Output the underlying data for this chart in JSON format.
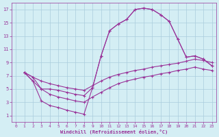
{
  "xlabel": "Windchill (Refroidissement éolien,°C)",
  "bg_color": "#d4eef4",
  "line_color": "#993399",
  "grid_color": "#aaccdd",
  "xlim": [
    -0.5,
    23.5
  ],
  "ylim": [
    0,
    18
  ],
  "xticks": [
    0,
    1,
    2,
    3,
    4,
    5,
    6,
    7,
    8,
    9,
    10,
    11,
    12,
    13,
    14,
    15,
    16,
    17,
    18,
    19,
    20,
    21,
    22,
    23
  ],
  "yticks": [
    1,
    3,
    5,
    7,
    9,
    11,
    13,
    15,
    17
  ],
  "curve1_x": [
    1,
    2,
    3,
    4,
    5,
    6,
    7,
    8,
    9,
    10,
    11,
    12,
    13,
    14,
    15,
    16,
    17,
    18,
    19,
    20,
    21,
    22,
    23
  ],
  "curve1_y": [
    7.5,
    6.2,
    5.0,
    5.0,
    4.8,
    4.5,
    4.2,
    4.0,
    5.2,
    10.0,
    13.8,
    14.8,
    15.5,
    17.0,
    17.2,
    17.0,
    16.2,
    15.2,
    12.5,
    9.8,
    10.0,
    9.5,
    8.5
  ],
  "curve2_x": [
    1,
    2,
    3,
    4,
    5,
    6,
    7,
    8,
    9,
    10,
    11,
    12,
    13,
    14,
    15,
    16,
    17,
    18,
    19,
    20,
    21,
    22,
    23
  ],
  "curve2_y": [
    7.5,
    6.2,
    3.2,
    2.5,
    2.2,
    1.8,
    1.5,
    1.2,
    5.2,
    10.0,
    13.8,
    14.8,
    15.5,
    17.0,
    17.2,
    17.0,
    16.2,
    15.2,
    12.5,
    9.8,
    10.0,
    9.5,
    8.5
  ],
  "curve3_x": [
    1,
    2,
    3,
    4,
    5,
    6,
    7,
    8,
    9,
    10,
    11,
    12,
    13,
    14,
    15,
    16,
    17,
    18,
    19,
    20,
    21,
    22,
    23
  ],
  "curve3_y": [
    7.5,
    6.8,
    6.2,
    5.8,
    5.5,
    5.2,
    5.0,
    4.8,
    5.5,
    6.2,
    6.8,
    7.2,
    7.5,
    7.8,
    8.0,
    8.3,
    8.5,
    8.7,
    8.9,
    9.2,
    9.5,
    9.3,
    9.0
  ],
  "curve4_x": [
    1,
    2,
    3,
    4,
    5,
    6,
    7,
    8,
    9,
    10,
    11,
    12,
    13,
    14,
    15,
    16,
    17,
    18,
    19,
    20,
    21,
    22,
    23
  ],
  "curve4_y": [
    7.5,
    6.8,
    5.0,
    4.2,
    3.8,
    3.5,
    3.2,
    3.0,
    3.8,
    4.5,
    5.2,
    5.8,
    6.2,
    6.5,
    6.8,
    7.0,
    7.3,
    7.5,
    7.8,
    8.0,
    8.3,
    8.0,
    7.8
  ]
}
